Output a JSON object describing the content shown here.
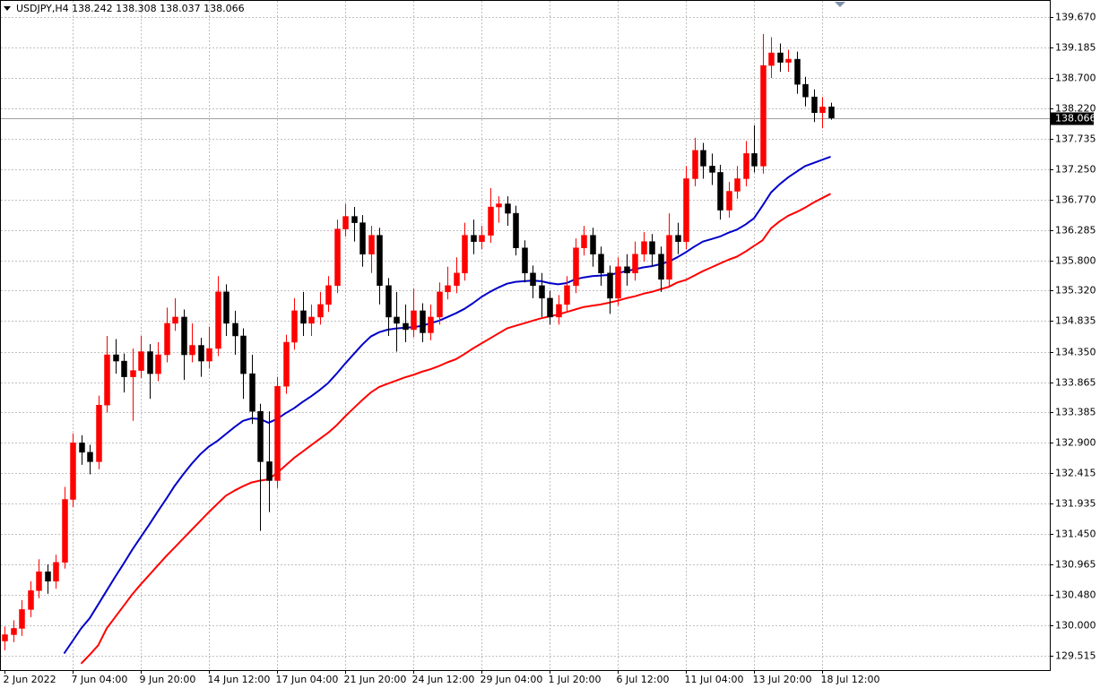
{
  "chart_data": {
    "type": "candlestick",
    "title": "USDJPY,H4",
    "up_color": "#ff0000",
    "down_color": "#000000",
    "grid": true,
    "ylim": [
      129.287,
      139.941
    ],
    "yticks": [
      {
        "value": 139.67,
        "label": "139.670"
      },
      {
        "value": 139.185,
        "label": "139.185"
      },
      {
        "value": 138.7,
        "label": "138.700"
      },
      {
        "value": 138.22,
        "label": "138.220"
      },
      {
        "value": 137.735,
        "label": "137.735"
      },
      {
        "value": 137.25,
        "label": "137.250"
      },
      {
        "value": 136.77,
        "label": "136.770"
      },
      {
        "value": 136.285,
        "label": "136.285"
      },
      {
        "value": 135.8,
        "label": "135.800"
      },
      {
        "value": 135.32,
        "label": "135.320"
      },
      {
        "value": 134.835,
        "label": "134.835"
      },
      {
        "value": 134.35,
        "label": "134.350"
      },
      {
        "value": 133.865,
        "label": "133.865"
      },
      {
        "value": 133.385,
        "label": "133.385"
      },
      {
        "value": 132.9,
        "label": "132.900"
      },
      {
        "value": 132.415,
        "label": "132.415"
      },
      {
        "value": 131.935,
        "label": "131.935"
      },
      {
        "value": 131.45,
        "label": "131.450"
      },
      {
        "value": 130.965,
        "label": "130.965"
      },
      {
        "value": 130.48,
        "label": "130.480"
      },
      {
        "value": 130.0,
        "label": "130.000"
      },
      {
        "value": 129.515,
        "label": "129.515"
      }
    ],
    "categories": [
      "2 Jun 2022",
      null,
      null,
      null,
      null,
      null,
      null,
      null,
      "7 Jun 04:00",
      null,
      null,
      null,
      null,
      null,
      null,
      null,
      "9 Jun 20:00",
      null,
      null,
      null,
      null,
      null,
      null,
      null,
      "14 Jun 12:00",
      null,
      null,
      null,
      null,
      null,
      null,
      null,
      "17 Jun 04:00",
      null,
      null,
      null,
      null,
      null,
      null,
      null,
      "21 Jun 20:00",
      null,
      null,
      null,
      null,
      null,
      null,
      null,
      "24 Jun 12:00",
      null,
      null,
      null,
      null,
      null,
      null,
      null,
      "29 Jun 04:00",
      null,
      null,
      null,
      null,
      null,
      null,
      null,
      "1 Jul 20:00",
      null,
      null,
      null,
      null,
      null,
      null,
      null,
      "6 Jul 12:00",
      null,
      null,
      null,
      null,
      null,
      null,
      null,
      "11 Jul 04:00",
      null,
      null,
      null,
      null,
      null,
      null,
      null,
      "13 Jul 20:00",
      null,
      null,
      null,
      null,
      null,
      null,
      null,
      "18 Jul 12:00",
      null
    ],
    "ohlc": [
      [
        129.75,
        129.98,
        129.6,
        129.85
      ],
      [
        129.85,
        130.08,
        129.73,
        129.95
      ],
      [
        129.95,
        130.4,
        129.83,
        130.25
      ],
      [
        130.25,
        130.7,
        130.13,
        130.55
      ],
      [
        130.55,
        131.05,
        130.43,
        130.85
      ],
      [
        130.85,
        130.97,
        130.5,
        130.7
      ],
      [
        130.7,
        131.12,
        130.58,
        131.0
      ],
      [
        131.0,
        132.2,
        130.9,
        132.0
      ],
      [
        132.0,
        133.05,
        131.88,
        132.9
      ],
      [
        132.9,
        133.02,
        132.55,
        132.75
      ],
      [
        132.75,
        132.87,
        132.4,
        132.6
      ],
      [
        132.6,
        133.65,
        132.48,
        133.5
      ],
      [
        133.5,
        134.6,
        133.38,
        134.3
      ],
      [
        134.3,
        134.55,
        134.0,
        134.2
      ],
      [
        134.2,
        134.32,
        133.7,
        133.95
      ],
      [
        133.95,
        134.4,
        133.25,
        134.05
      ],
      [
        134.05,
        134.6,
        133.93,
        134.35
      ],
      [
        134.35,
        134.47,
        133.6,
        134.0
      ],
      [
        134.0,
        134.5,
        133.88,
        134.3
      ],
      [
        134.3,
        135.05,
        134.18,
        134.8
      ],
      [
        134.8,
        135.2,
        134.68,
        134.9
      ],
      [
        134.9,
        135.02,
        133.9,
        134.3
      ],
      [
        134.3,
        134.8,
        134.18,
        134.45
      ],
      [
        134.45,
        134.57,
        133.95,
        134.2
      ],
      [
        134.2,
        134.75,
        134.08,
        134.4
      ],
      [
        134.4,
        135.55,
        134.28,
        135.3
      ],
      [
        135.3,
        135.42,
        134.6,
        134.8
      ],
      [
        134.8,
        135.0,
        134.3,
        134.6
      ],
      [
        134.6,
        134.72,
        133.6,
        134.0
      ],
      [
        134.0,
        134.3,
        133.2,
        133.4
      ],
      [
        133.4,
        133.52,
        131.5,
        132.6
      ],
      [
        132.6,
        133.4,
        131.8,
        132.3
      ],
      [
        132.3,
        133.95,
        132.18,
        133.8
      ],
      [
        133.8,
        134.62,
        133.68,
        134.5
      ],
      [
        134.5,
        135.2,
        134.38,
        135.0
      ],
      [
        135.0,
        135.3,
        134.6,
        134.8
      ],
      [
        134.8,
        135.1,
        134.6,
        134.9
      ],
      [
        134.9,
        135.3,
        134.78,
        135.1
      ],
      [
        135.1,
        135.55,
        134.98,
        135.4
      ],
      [
        135.4,
        136.45,
        135.28,
        136.3
      ],
      [
        136.3,
        136.7,
        136.18,
        136.5
      ],
      [
        136.5,
        136.65,
        136.1,
        136.4
      ],
      [
        136.4,
        136.52,
        135.7,
        135.9
      ],
      [
        135.9,
        136.35,
        135.6,
        136.2
      ],
      [
        136.2,
        136.32,
        135.1,
        135.4
      ],
      [
        135.4,
        135.52,
        134.6,
        134.9
      ],
      [
        134.9,
        135.3,
        134.35,
        134.8
      ],
      [
        134.8,
        135.1,
        134.5,
        134.7
      ],
      [
        134.7,
        135.35,
        134.58,
        135.0
      ],
      [
        135.0,
        135.12,
        134.5,
        134.65
      ],
      [
        134.65,
        135.1,
        134.53,
        134.9
      ],
      [
        134.9,
        135.45,
        134.78,
        135.3
      ],
      [
        135.3,
        135.7,
        135.18,
        135.4
      ],
      [
        135.4,
        135.85,
        135.28,
        135.6
      ],
      [
        135.6,
        136.4,
        135.48,
        136.2
      ],
      [
        136.2,
        136.45,
        135.9,
        136.1
      ],
      [
        136.1,
        136.35,
        135.98,
        136.2
      ],
      [
        136.2,
        136.95,
        136.08,
        136.65
      ],
      [
        136.65,
        136.82,
        136.4,
        136.7
      ],
      [
        136.7,
        136.82,
        136.35,
        136.55
      ],
      [
        136.55,
        136.67,
        135.88,
        136.0
      ],
      [
        136.0,
        136.12,
        135.45,
        135.6
      ],
      [
        135.6,
        135.72,
        135.2,
        135.4
      ],
      [
        135.4,
        135.6,
        134.9,
        135.2
      ],
      [
        135.2,
        135.32,
        134.78,
        134.9
      ],
      [
        134.9,
        135.25,
        134.78,
        135.1
      ],
      [
        135.1,
        135.55,
        134.98,
        135.4
      ],
      [
        135.4,
        136.15,
        135.28,
        136.0
      ],
      [
        136.0,
        136.35,
        135.88,
        136.2
      ],
      [
        136.2,
        136.32,
        135.7,
        135.9
      ],
      [
        135.9,
        136.02,
        135.4,
        135.6
      ],
      [
        135.6,
        135.72,
        134.95,
        135.2
      ],
      [
        135.2,
        135.85,
        135.08,
        135.7
      ],
      [
        135.7,
        135.9,
        135.4,
        135.6
      ],
      [
        135.6,
        136.1,
        135.48,
        135.9
      ],
      [
        135.9,
        136.25,
        135.78,
        136.1
      ],
      [
        136.1,
        136.22,
        135.7,
        135.9
      ],
      [
        135.9,
        136.02,
        135.3,
        135.5
      ],
      [
        135.5,
        136.55,
        135.38,
        136.2
      ],
      [
        136.2,
        136.4,
        135.9,
        136.1
      ],
      [
        136.1,
        137.3,
        135.98,
        137.1
      ],
      [
        137.1,
        137.75,
        136.98,
        137.55
      ],
      [
        137.55,
        137.67,
        137.1,
        137.3
      ],
      [
        137.3,
        137.5,
        137.0,
        137.2
      ],
      [
        137.2,
        137.32,
        136.45,
        136.6
      ],
      [
        136.6,
        137.05,
        136.48,
        136.9
      ],
      [
        136.9,
        137.3,
        136.78,
        137.1
      ],
      [
        137.1,
        137.7,
        136.98,
        137.5
      ],
      [
        137.5,
        137.95,
        137.2,
        137.3
      ],
      [
        137.3,
        139.4,
        137.18,
        138.9
      ],
      [
        138.9,
        139.35,
        138.7,
        139.1
      ],
      [
        139.1,
        139.25,
        138.8,
        138.95
      ],
      [
        138.95,
        139.15,
        138.8,
        139.0
      ],
      [
        139.0,
        139.12,
        138.45,
        138.6
      ],
      [
        138.6,
        138.72,
        138.25,
        138.4
      ],
      [
        138.4,
        138.52,
        138.0,
        138.15
      ],
      [
        138.15,
        138.4,
        137.9,
        138.24
      ],
      [
        138.242,
        138.308,
        138.037,
        138.066
      ]
    ],
    "series": [
      {
        "color": "#0000c8",
        "values": [
          null,
          null,
          null,
          null,
          null,
          null,
          null,
          129.55,
          129.75,
          129.95,
          130.11,
          130.33,
          130.55,
          130.77,
          130.98,
          131.2,
          131.4,
          131.6,
          131.81,
          132.01,
          132.22,
          132.4,
          132.57,
          132.72,
          132.84,
          132.93,
          133.04,
          133.15,
          133.25,
          133.29,
          133.28,
          133.22,
          133.28,
          133.37,
          133.45,
          133.55,
          133.64,
          133.74,
          133.85,
          134.0,
          134.16,
          134.31,
          134.46,
          134.59,
          134.66,
          134.7,
          134.72,
          134.73,
          134.74,
          134.76,
          134.8,
          134.84,
          134.9,
          134.96,
          135.03,
          135.12,
          135.22,
          135.3,
          135.37,
          135.43,
          135.46,
          135.47,
          135.48,
          135.47,
          135.44,
          135.42,
          135.44,
          135.5,
          135.53,
          135.55,
          135.56,
          135.57,
          135.6,
          135.63,
          135.66,
          135.69,
          135.71,
          135.74,
          135.78,
          135.85,
          135.93,
          136.02,
          136.1,
          136.14,
          136.18,
          136.24,
          136.29,
          136.37,
          136.47,
          136.67,
          136.88,
          137.01,
          137.12,
          137.21,
          137.3,
          137.35,
          137.4,
          137.45
        ]
      },
      {
        "color": "#ff0000",
        "values": [
          null,
          null,
          null,
          null,
          null,
          null,
          null,
          null,
          null,
          129.39,
          129.53,
          129.68,
          129.95,
          130.13,
          130.31,
          130.49,
          130.65,
          130.8,
          130.95,
          131.1,
          131.24,
          131.38,
          131.52,
          131.66,
          131.8,
          131.93,
          132.06,
          132.14,
          132.21,
          132.27,
          132.3,
          132.32,
          132.42,
          132.54,
          132.66,
          132.76,
          132.86,
          132.96,
          133.06,
          133.18,
          133.32,
          133.45,
          133.58,
          133.7,
          133.79,
          133.84,
          133.89,
          133.94,
          133.98,
          134.03,
          134.07,
          134.12,
          134.18,
          134.23,
          134.31,
          134.4,
          134.48,
          134.56,
          134.64,
          134.72,
          134.76,
          134.8,
          134.84,
          134.88,
          134.91,
          134.94,
          134.98,
          135.02,
          135.06,
          135.08,
          135.1,
          135.13,
          135.16,
          135.2,
          135.23,
          135.27,
          135.3,
          135.34,
          135.38,
          135.45,
          135.49,
          135.56,
          135.63,
          135.69,
          135.75,
          135.81,
          135.86,
          135.94,
          136.03,
          136.12,
          136.31,
          136.42,
          136.51,
          136.57,
          136.64,
          136.72,
          136.79,
          136.86
        ]
      }
    ]
  }
}
